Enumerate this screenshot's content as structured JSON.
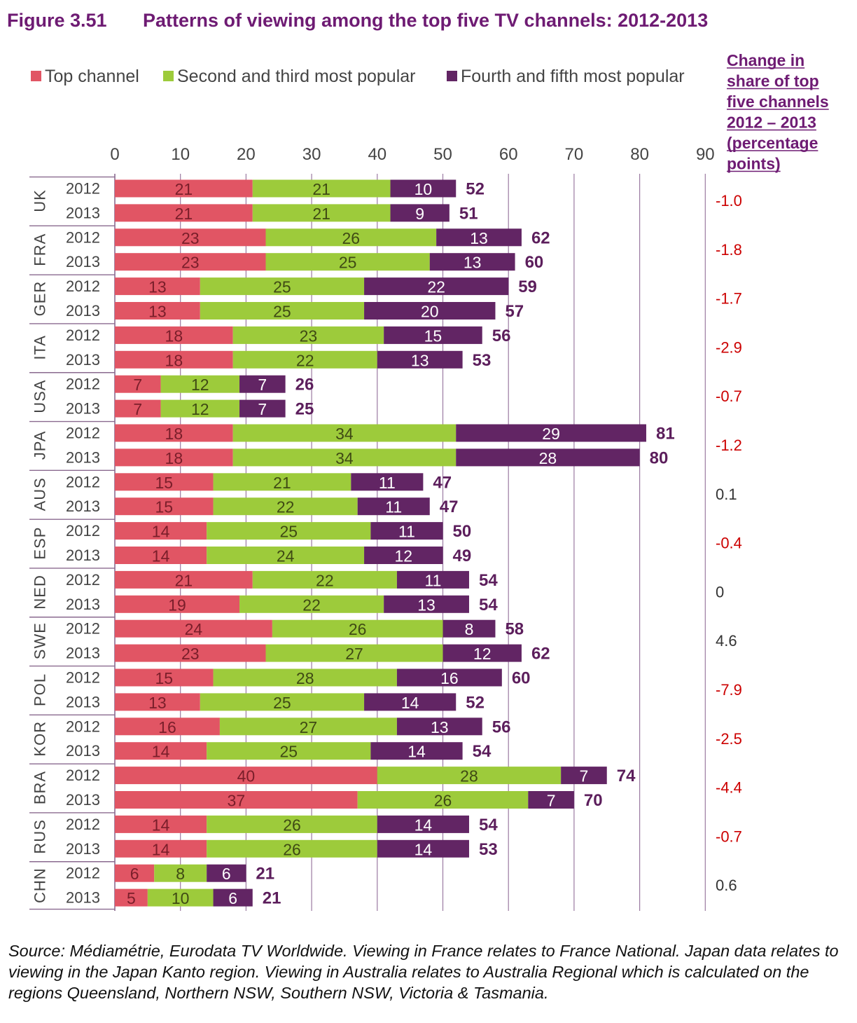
{
  "figure": {
    "number": "Figure 3.51",
    "title": "Patterns of viewing among the top five TV channels: 2012-2013"
  },
  "change_header": {
    "lines": [
      "Change in",
      "share of top",
      "five channels",
      "2012 – 2013",
      "(percentage",
      "points)"
    ]
  },
  "source": "Source: Médiamétrie, Eurodata TV Worldwide. Viewing in France relates to France National. Japan data relates to viewing in the Japan Kanto region. Viewing in Australia relates to Australia Regional which is calculated on the regions Queensland, Northern NSW, Southern NSW, Victoria & Tasmania.",
  "colors": {
    "top_channel": "#e15564",
    "second_third": "#9dcb3b",
    "fourth_fifth": "#622564",
    "negative_change": "#cc0000",
    "positive_change": "#333333",
    "title": "#6e1b73"
  },
  "chart_data": {
    "type": "bar",
    "orientation": "horizontal",
    "stacked": true,
    "xlim": [
      0,
      90
    ],
    "xticks": [
      0,
      10,
      20,
      30,
      40,
      50,
      60,
      70,
      80,
      90
    ],
    "grid": true,
    "legend_position": "top",
    "series": [
      {
        "name": "Top channel",
        "color": "#e15564"
      },
      {
        "name": "Second and third most popular",
        "color": "#9dcb3b"
      },
      {
        "name": "Fourth and fifth most popular",
        "color": "#622564"
      }
    ],
    "groups": [
      {
        "country": "UK",
        "change": "-1.0",
        "rows": [
          {
            "year": "2012",
            "values": [
              21,
              21,
              10
            ],
            "total": 52
          },
          {
            "year": "2013",
            "values": [
              21,
              21,
              9
            ],
            "total": 51
          }
        ]
      },
      {
        "country": "FRA",
        "change": "-1.8",
        "rows": [
          {
            "year": "2012",
            "values": [
              23,
              26,
              13
            ],
            "total": 62
          },
          {
            "year": "2013",
            "values": [
              23,
              25,
              13
            ],
            "total": 60
          }
        ]
      },
      {
        "country": "GER",
        "change": "-1.7",
        "rows": [
          {
            "year": "2012",
            "values": [
              13,
              25,
              22
            ],
            "total": 59
          },
          {
            "year": "2013",
            "values": [
              13,
              25,
              20
            ],
            "total": 57
          }
        ]
      },
      {
        "country": "ITA",
        "change": "-2.9",
        "rows": [
          {
            "year": "2012",
            "values": [
              18,
              23,
              15
            ],
            "total": 56
          },
          {
            "year": "2013",
            "values": [
              18,
              22,
              13
            ],
            "total": 53
          }
        ]
      },
      {
        "country": "USA",
        "change": "-0.7",
        "rows": [
          {
            "year": "2012",
            "values": [
              7,
              12,
              7
            ],
            "total": 26
          },
          {
            "year": "2013",
            "values": [
              7,
              12,
              7
            ],
            "total": 25
          }
        ]
      },
      {
        "country": "JPA",
        "change": "-1.2",
        "rows": [
          {
            "year": "2012",
            "values": [
              18,
              34,
              29
            ],
            "total": 81
          },
          {
            "year": "2013",
            "values": [
              18,
              34,
              28
            ],
            "total": 80
          }
        ]
      },
      {
        "country": "AUS",
        "change": "0.1",
        "rows": [
          {
            "year": "2012",
            "values": [
              15,
              21,
              11
            ],
            "total": 47
          },
          {
            "year": "2013",
            "values": [
              15,
              22,
              11
            ],
            "total": 47
          }
        ]
      },
      {
        "country": "ESP",
        "change": "-0.4",
        "rows": [
          {
            "year": "2012",
            "values": [
              14,
              25,
              11
            ],
            "total": 50
          },
          {
            "year": "2013",
            "values": [
              14,
              24,
              12
            ],
            "total": 49
          }
        ]
      },
      {
        "country": "NED",
        "change": "0",
        "rows": [
          {
            "year": "2012",
            "values": [
              21,
              22,
              11
            ],
            "total": 54
          },
          {
            "year": "2013",
            "values": [
              19,
              22,
              13
            ],
            "total": 54
          }
        ]
      },
      {
        "country": "SWE",
        "change": "4.6",
        "rows": [
          {
            "year": "2012",
            "values": [
              24,
              26,
              8
            ],
            "total": 58
          },
          {
            "year": "2013",
            "values": [
              23,
              27,
              12
            ],
            "total": 62
          }
        ]
      },
      {
        "country": "POL",
        "change": "-7.9",
        "rows": [
          {
            "year": "2012",
            "values": [
              15,
              28,
              16
            ],
            "total": 60
          },
          {
            "year": "2013",
            "values": [
              13,
              25,
              14
            ],
            "total": 52
          }
        ]
      },
      {
        "country": "KOR",
        "change": "-2.5",
        "rows": [
          {
            "year": "2012",
            "values": [
              16,
              27,
              13
            ],
            "total": 56
          },
          {
            "year": "2013",
            "values": [
              14,
              25,
              14
            ],
            "total": 54
          }
        ]
      },
      {
        "country": "BRA",
        "change": "-4.4",
        "rows": [
          {
            "year": "2012",
            "values": [
              40,
              28,
              7
            ],
            "total": 74
          },
          {
            "year": "2013",
            "values": [
              37,
              26,
              7
            ],
            "total": 70
          }
        ]
      },
      {
        "country": "RUS",
        "change": "-0.7",
        "rows": [
          {
            "year": "2012",
            "values": [
              14,
              26,
              14
            ],
            "total": 54
          },
          {
            "year": "2013",
            "values": [
              14,
              26,
              14
            ],
            "total": 53
          }
        ]
      },
      {
        "country": "CHN",
        "change": "0.6",
        "rows": [
          {
            "year": "2012",
            "values": [
              6,
              8,
              6
            ],
            "total": 21
          },
          {
            "year": "2013",
            "values": [
              5,
              10,
              6
            ],
            "total": 21
          }
        ]
      }
    ]
  }
}
